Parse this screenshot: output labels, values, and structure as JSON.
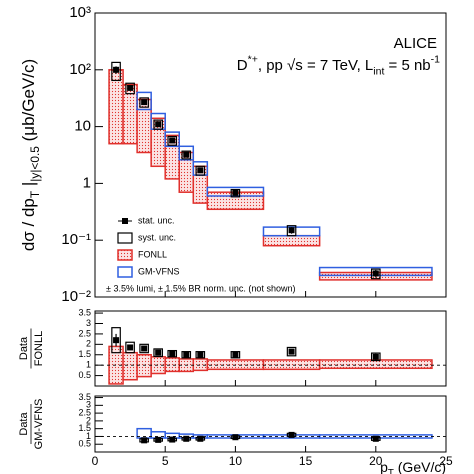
{
  "chart_data": [
    {
      "type": "scatter",
      "log_y": true,
      "annotation_top": "ALICE",
      "annotation": [
        {
          "text": "D",
          "pos": "base"
        },
        {
          "text": "*+",
          "pos": "sup"
        },
        {
          "text": ", pp √s = 7 TeV, L",
          "pos": "base"
        },
        {
          "text": "int",
          "pos": "sub"
        },
        {
          "text": " = 5 nb",
          "pos": "base"
        },
        {
          "text": "-1",
          "pos": "sup"
        }
      ],
      "y_label": [
        {
          "text": "dσ / dp",
          "pos": "base"
        },
        {
          "text": "T",
          "pos": "sub"
        },
        {
          "text": " |",
          "pos": "base"
        },
        {
          "text": "|y|<0.5",
          "pos": "sub"
        },
        {
          "text": "  (μb/GeV/c)",
          "pos": "base"
        }
      ],
      "xlim": [
        0,
        25
      ],
      "xticks": [
        0,
        5,
        10,
        15,
        20,
        25
      ],
      "ylim": [
        0.01,
        1000
      ],
      "yticks": [
        {
          "value": 0.01,
          "label": "10⁻²"
        },
        {
          "value": 0.1,
          "label": "10⁻¹"
        },
        1,
        10,
        {
          "value": 100,
          "label": "10²"
        },
        {
          "value": 1000,
          "label": "10³"
        }
      ],
      "bins": [
        1,
        2,
        3,
        4,
        5,
        6,
        7,
        8,
        12,
        16,
        24
      ],
      "x": [
        1.5,
        2.5,
        3.5,
        4.5,
        5.5,
        6.5,
        7.5,
        10,
        14,
        20
      ],
      "series": [
        {
          "name": "stat. unc.",
          "color": "#000000",
          "values": [
            100,
            48,
            27,
            11,
            5.7,
            3.2,
            1.7,
            0.68,
            0.15,
            0.026
          ],
          "errors": [
            15,
            5,
            2.5,
            1,
            0.5,
            0.3,
            0.15,
            0.06,
            0.02,
            0.004
          ]
        }
      ],
      "syst": {
        "name": "syst. unc.",
        "values": [
          35,
          10,
          5,
          2,
          1,
          0.5,
          0.3,
          0.1,
          0.03,
          0.005
        ]
      },
      "bands": [
        {
          "name": "FONLL",
          "color": "#e0302c",
          "low": [
            5,
            5,
            3.5,
            2,
            1.2,
            0.7,
            0.45,
            0.35,
            0.08,
            0.02
          ],
          "high": [
            100,
            55,
            30,
            14,
            7,
            3.5,
            2,
            0.7,
            0.12,
            0.027
          ]
        },
        {
          "name": "GM-VFNS",
          "color": "#2f5fe0",
          "low": [
            null,
            null,
            20,
            9,
            4.5,
            2.6,
            1.4,
            0.6,
            0.12,
            0.024
          ],
          "high": [
            null,
            null,
            40,
            17,
            8,
            4.5,
            2.4,
            0.85,
            0.17,
            0.033
          ]
        }
      ],
      "note": "± 3.5% lumi, ± 1.5% BR norm. unc. (not shown)"
    },
    {
      "type": "scatter",
      "log_y": false,
      "y_label": [
        "Data",
        "FONLL"
      ],
      "xlim": [
        0,
        25
      ],
      "xticks": [
        0,
        5,
        10,
        15,
        20,
        25
      ],
      "ylim": [
        0,
        3.6
      ],
      "yticks": [
        0.5,
        1,
        1.5,
        2,
        2.5,
        3,
        3.5
      ],
      "reference": 1,
      "bins": [
        1,
        2,
        3,
        4,
        5,
        6,
        7,
        8,
        12,
        16,
        24
      ],
      "x": [
        1.5,
        2.5,
        3.5,
        4.5,
        5.5,
        6.5,
        7.5,
        10,
        14,
        20
      ],
      "series": [
        {
          "color": "#000000",
          "values": [
            2.2,
            1.85,
            1.8,
            1.6,
            1.55,
            1.5,
            1.5,
            1.5,
            1.65,
            1.4
          ],
          "errors": [
            0.3,
            0.1,
            0.1,
            0.08,
            0.08,
            0.08,
            0.08,
            0.08,
            0.12,
            0.15
          ]
        }
      ],
      "syst": {
        "values": [
          0.6,
          0.25,
          0.2,
          0.18,
          0.15,
          0.15,
          0.15,
          0.15,
          0.2,
          0.18
        ]
      },
      "bands": [
        {
          "color": "#e0302c",
          "low": [
            0.1,
            0.3,
            0.45,
            0.6,
            0.7,
            0.7,
            0.75,
            0.8,
            0.8,
            0.85
          ],
          "high": [
            1.9,
            1.6,
            1.5,
            1.4,
            1.35,
            1.3,
            1.3,
            1.25,
            1.25,
            1.25
          ]
        }
      ]
    },
    {
      "type": "scatter",
      "log_y": false,
      "y_label": [
        "Data",
        "GM-VFNS"
      ],
      "x_label": [
        {
          "text": "p",
          "pos": "base"
        },
        {
          "text": "T",
          "pos": "sub"
        },
        {
          "text": " (GeV/c)",
          "pos": "base"
        }
      ],
      "xlim": [
        0,
        25
      ],
      "xticks": [
        0,
        5,
        10,
        15,
        20,
        25
      ],
      "ylim": [
        0,
        3.6
      ],
      "yticks": [
        0.5,
        1,
        1.5,
        2,
        2.5,
        3,
        3.5
      ],
      "reference": 1,
      "bins": [
        1,
        2,
        3,
        4,
        5,
        6,
        7,
        8,
        12,
        16,
        24
      ],
      "x": [
        1.5,
        2.5,
        3.5,
        4.5,
        5.5,
        6.5,
        7.5,
        10,
        14,
        20
      ],
      "series": [
        {
          "color": "#000000",
          "values": [
            null,
            null,
            0.75,
            0.78,
            0.8,
            0.85,
            0.85,
            0.95,
            1.1,
            0.85
          ],
          "errors": [
            null,
            null,
            0.05,
            0.04,
            0.04,
            0.04,
            0.04,
            0.05,
            0.08,
            0.08
          ]
        }
      ],
      "syst": {
        "values": [
          null,
          null,
          0.1,
          0.08,
          0.08,
          0.08,
          0.08,
          0.08,
          0.1,
          0.1
        ]
      },
      "bands": [
        {
          "color": "#2f5fe0",
          "low": [
            null,
            null,
            0.9,
            0.9,
            0.9,
            0.9,
            0.9,
            0.9,
            0.9,
            0.9
          ],
          "high": [
            null,
            null,
            1.5,
            1.3,
            1.2,
            1.15,
            1.1,
            1.1,
            1.1,
            1.1
          ]
        }
      ]
    }
  ]
}
